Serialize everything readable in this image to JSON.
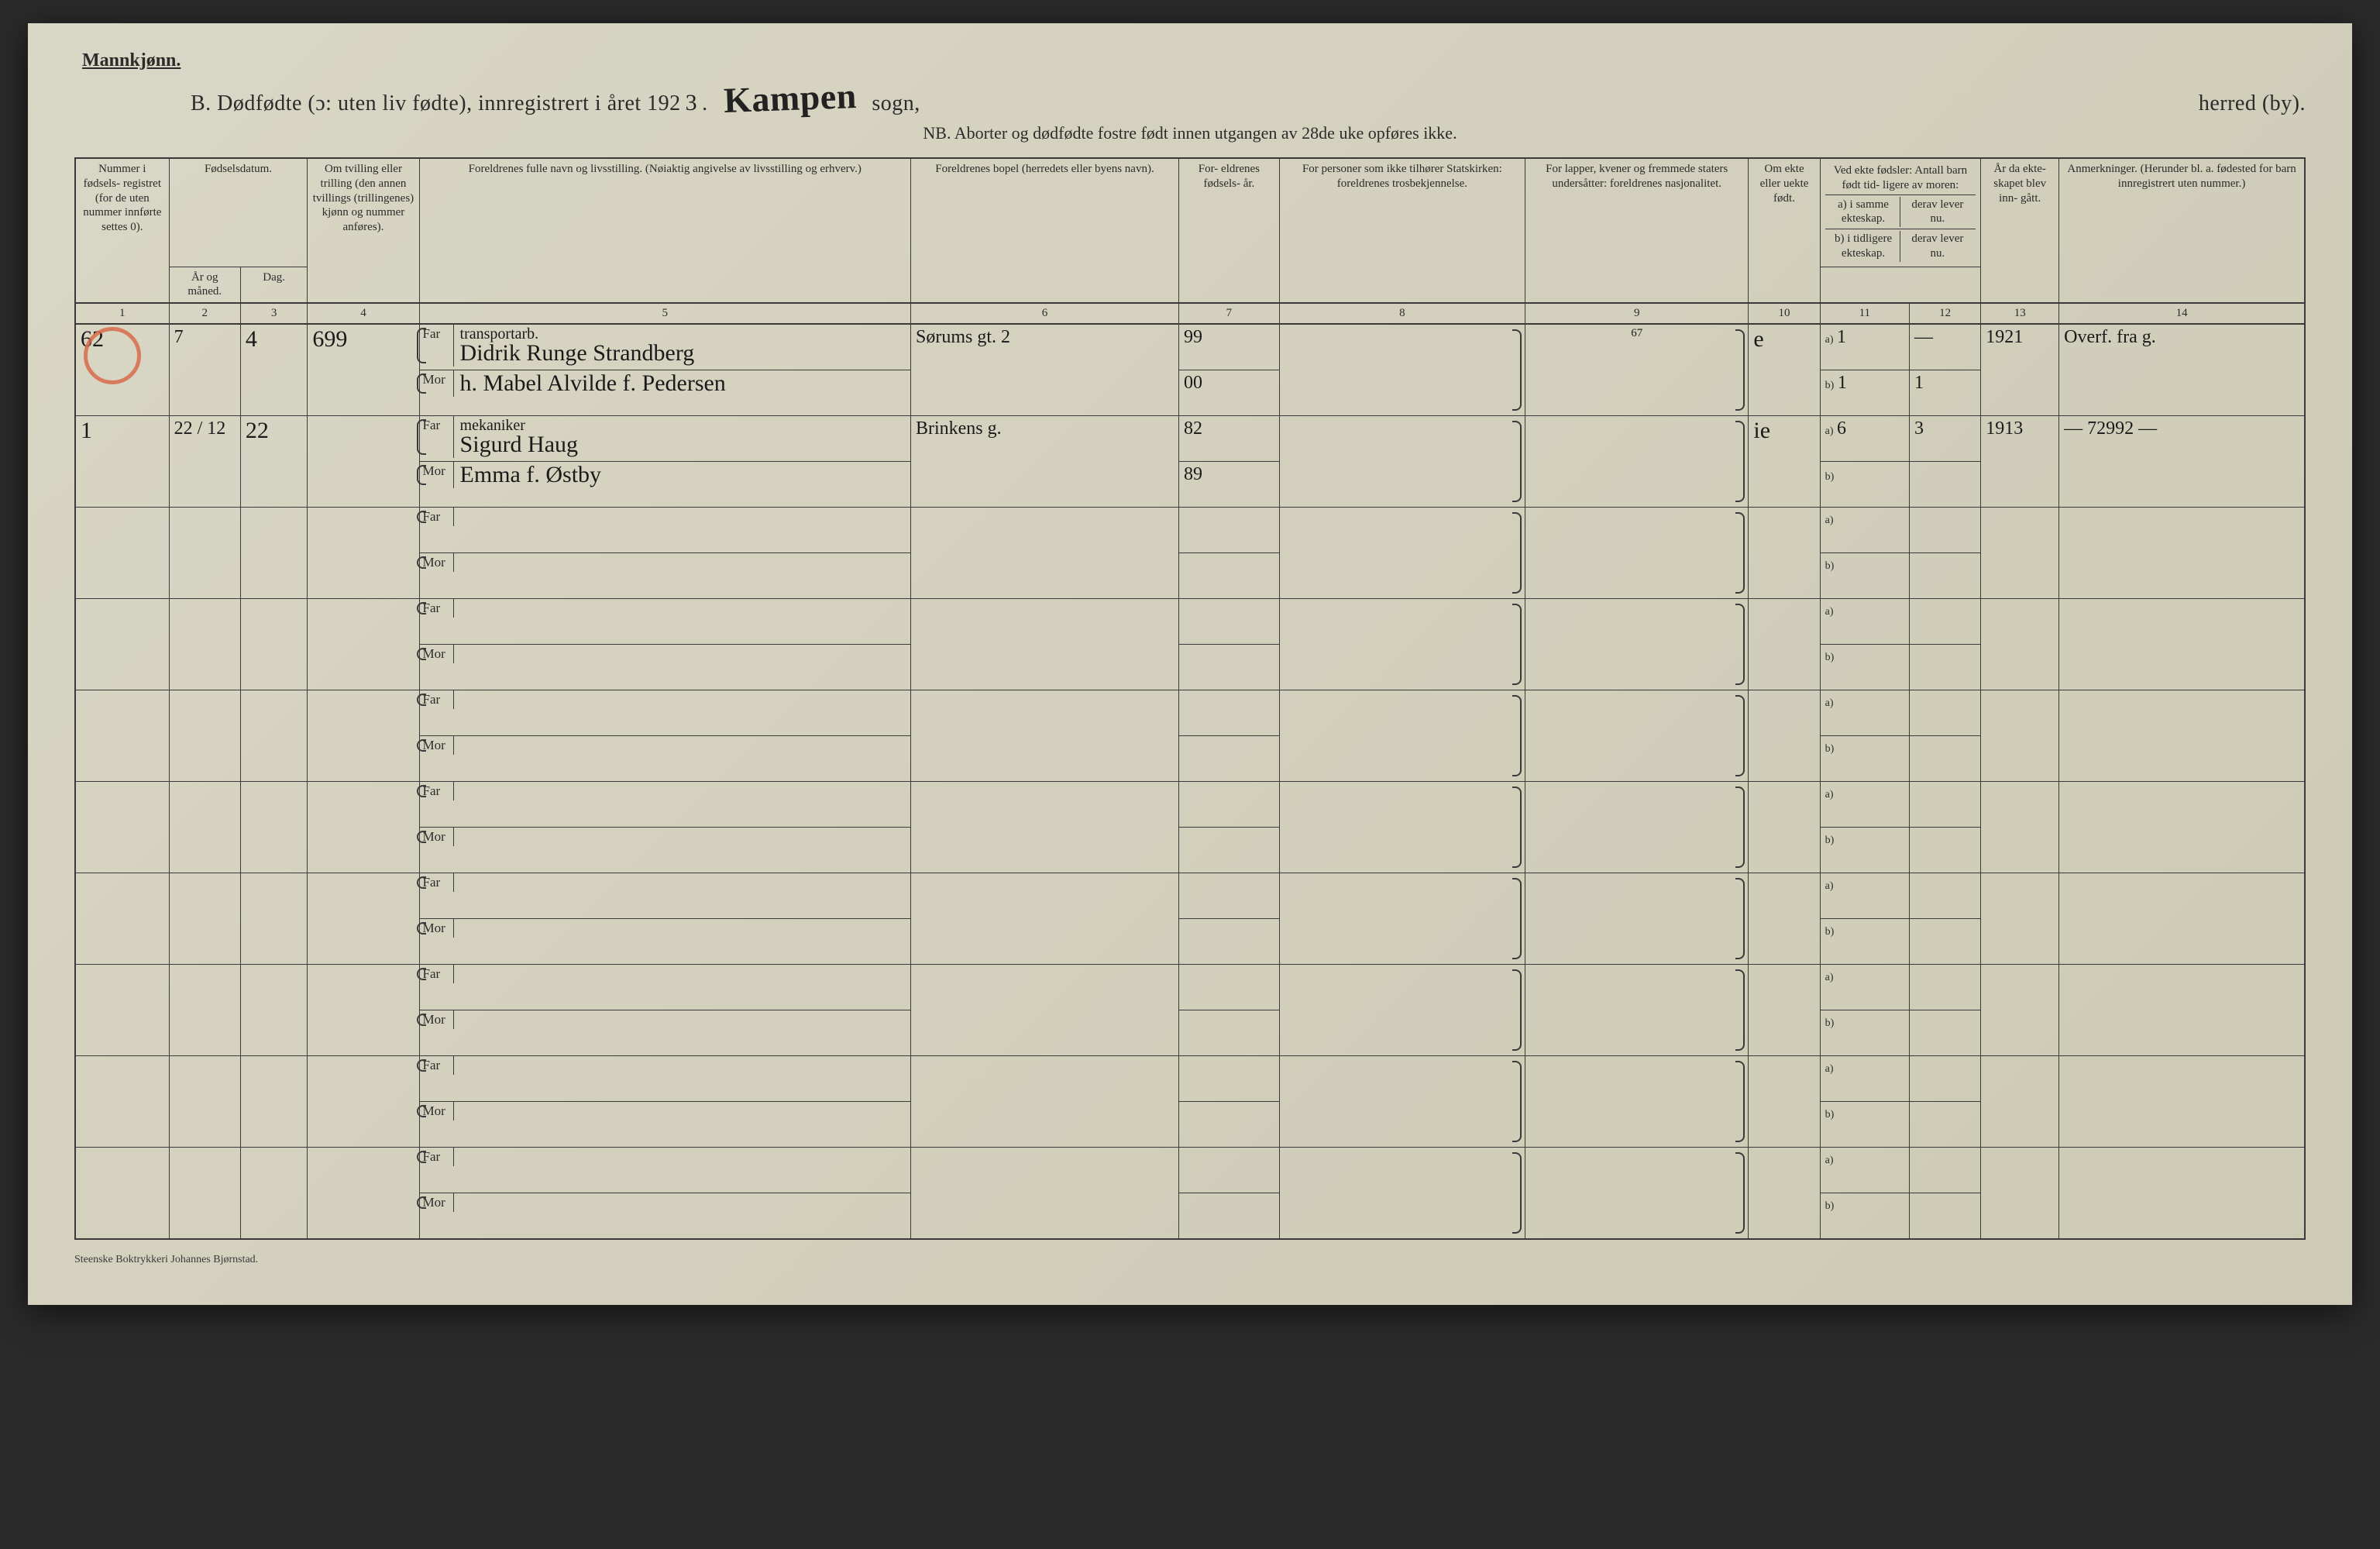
{
  "header": {
    "gender": "Mannkjønn.",
    "title_prefix": "B.  Dødfødte (ɔ: uten liv fødte), innregistrert i året 192",
    "year_suffix": "3",
    "parish_hw": "Kampen",
    "sogn": "sogn,",
    "herred": "herred (by).",
    "nb": "NB. Aborter og dødfødte fostre født innen utgangen av 28de uke opføres ikke."
  },
  "columns": {
    "c1": "Nummer i fødsels- registret (for de uten nummer innførte settes 0).",
    "c23_top": "Fødselsdatum.",
    "c2": "År og måned.",
    "c3": "Dag.",
    "c4": "Om tvilling eller trilling (den annen tvillings (trillingenes) kjønn og nummer anføres).",
    "c5": "Foreldrenes fulle navn og livsstilling. (Nøiaktig angivelse av livsstilling og erhverv.)",
    "c6": "Foreldrenes bopel (herredets eller byens navn).",
    "c7": "For- eldrenes fødsels- år.",
    "c8": "For personer som ikke tilhører Statskirken: foreldrenes trosbekjennelse.",
    "c9": "For lapper, kvener og fremmede staters undersåtter: foreldrenes nasjonalitet.",
    "c10": "Om ekte eller uekte født.",
    "c11_top": "Ved ekte fødsler: Antall barn født tid- ligere av moren:",
    "c11a": "a) i samme ekteskap.",
    "c11b": "b) i tidligere ekteskap.",
    "c12a": "derav lever nu.",
    "c12b": "derav lever nu.",
    "c13": "År da ekte- skapet blev inn- gått.",
    "c14": "Anmerkninger. (Herunder bl. a. fødested for barn innregistrert uten nummer.)"
  },
  "colnums": [
    "1",
    "2",
    "3",
    "4",
    "5",
    "6",
    "7",
    "8",
    "9",
    "10",
    "11",
    "12",
    "13",
    "14"
  ],
  "parent_labels": {
    "far": "Far",
    "mor": "Mor",
    "a": "a)",
    "b": "b)"
  },
  "rows": [
    {
      "num": "62",
      "ym": "7",
      "day": "4",
      "twin": "699",
      "far_occ": "transportarb.",
      "far": "Didrik Runge Strandberg",
      "mor": "h. Mabel Alvilde f. Pedersen",
      "bopel": "Sørums gt. 2",
      "far_yr": "99",
      "mor_yr": "00",
      "c8": "",
      "c9": "67",
      "ekte": "e",
      "a1": "1",
      "a2": "—",
      "b1": "1",
      "b2": "1",
      "c13": "1921",
      "c14": "Overf. fra g."
    },
    {
      "num": "1",
      "ym": "22 / 12",
      "day": "22",
      "twin": "",
      "far_occ": "mekaniker",
      "far": "Sigurd Haug",
      "mor": "Emma f. Østby",
      "bopel": "Brinkens g.",
      "far_yr": "82",
      "mor_yr": "89",
      "c8": "",
      "c9": "",
      "ekte": "ie",
      "a1": "6",
      "a2": "3",
      "b1": "",
      "b2": "",
      "c13": "1913",
      "c14": "— 72992 —"
    }
  ],
  "empty_count": 8,
  "footer": "Steenske Boktrykkeri Johannes Bjørnstad."
}
